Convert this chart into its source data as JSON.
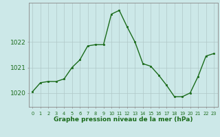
{
  "x": [
    0,
    1,
    2,
    3,
    4,
    5,
    6,
    7,
    8,
    9,
    10,
    11,
    12,
    13,
    14,
    15,
    16,
    17,
    18,
    19,
    20,
    21,
    22,
    23
  ],
  "y": [
    1020.05,
    1020.4,
    1020.45,
    1020.45,
    1020.55,
    1021.0,
    1021.3,
    1021.85,
    1021.9,
    1021.9,
    1023.1,
    1023.25,
    1022.6,
    1022.0,
    1021.15,
    1021.05,
    1020.7,
    1020.3,
    1019.85,
    1019.85,
    1020.0,
    1020.65,
    1021.45,
    1021.55
  ],
  "line_color": "#1a6b1a",
  "marker": "s",
  "marker_size": 1.8,
  "bg_color": "#cce8e8",
  "grid_color": "#b0c8c8",
  "xlabel": "Graphe pression niveau de la mer (hPa)",
  "xlabel_color": "#1a6b1a",
  "tick_color": "#1a6b1a",
  "yticks": [
    1020,
    1021,
    1022
  ],
  "ylim": [
    1019.45,
    1023.55
  ],
  "xlim": [
    -0.5,
    23.5
  ],
  "linewidth": 1.0,
  "border_color": "#888888"
}
